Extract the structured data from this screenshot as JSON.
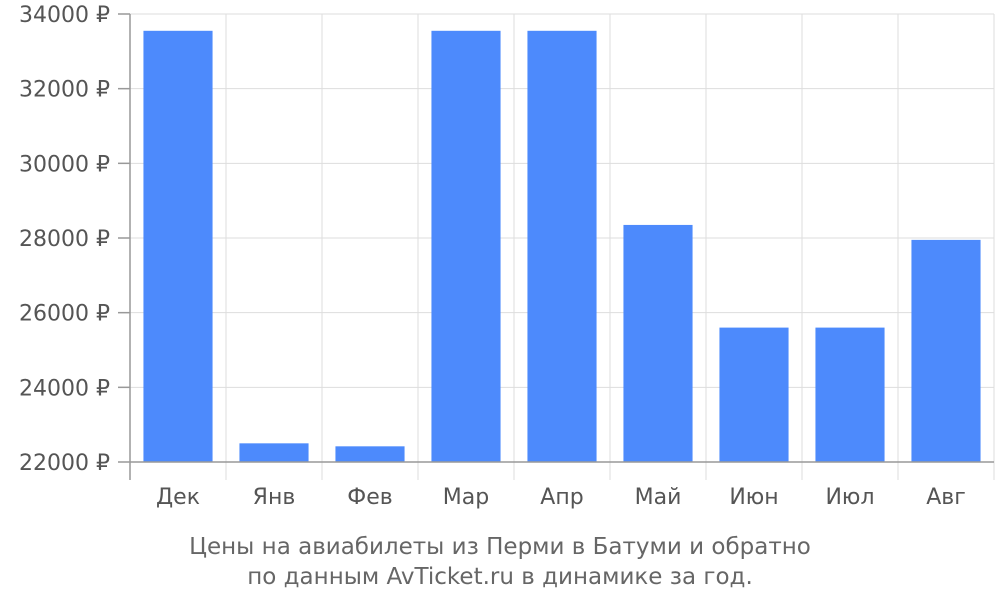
{
  "caption": {
    "line1": "Цены на авиабилеты из Перми в Батуми и обратно",
    "line2": "по данным AvTicket.ru в динамике за год."
  },
  "colors": {
    "bar": "#4d8afc",
    "grid": "#dddddd",
    "text": "#555555"
  },
  "chart_data": {
    "type": "bar",
    "categories": [
      "Дек",
      "Янв",
      "Фев",
      "Мар",
      "Апр",
      "Май",
      "Июн",
      "Июл",
      "Авг"
    ],
    "values": [
      33550,
      22500,
      22420,
      33550,
      33550,
      28350,
      25600,
      25600,
      27950
    ],
    "ylim": [
      22000,
      34000
    ],
    "yticks": [
      22000,
      24000,
      26000,
      28000,
      30000,
      32000,
      34000
    ],
    "ytick_labels": [
      "22000 ₽",
      "24000 ₽",
      "26000 ₽",
      "28000 ₽",
      "30000 ₽",
      "32000 ₽",
      "34000 ₽"
    ],
    "grid": true
  }
}
